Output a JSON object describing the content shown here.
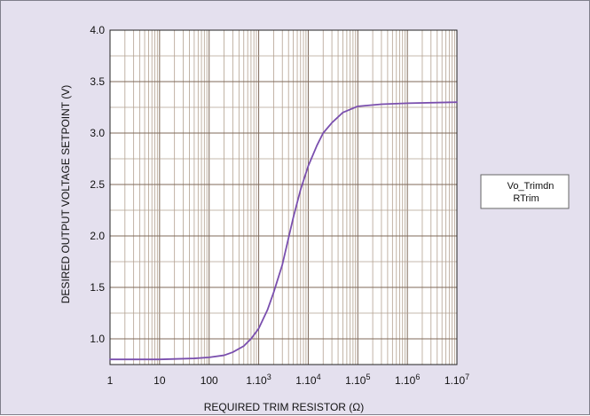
{
  "chart_data": {
    "type": "line",
    "title": "",
    "xlabel": "REQUIRED TRIM RESISTOR (Ω)",
    "ylabel": "DESIRED OUTPUT VOLTAGE SETPOINT (V)",
    "x_scale": "log",
    "xlim": [
      1,
      10000000
    ],
    "ylim": [
      0.75,
      4.0
    ],
    "grid": true,
    "x_ticks": [
      {
        "value": 1,
        "base": "1",
        "exp": ""
      },
      {
        "value": 10,
        "base": "10",
        "exp": ""
      },
      {
        "value": 100,
        "base": "100",
        "exp": ""
      },
      {
        "value": 1000,
        "base": "1.10",
        "exp": "3"
      },
      {
        "value": 10000,
        "base": "1.10",
        "exp": "4"
      },
      {
        "value": 100000,
        "base": "1.10",
        "exp": "5"
      },
      {
        "value": 1000000,
        "base": "1.10",
        "exp": "6"
      },
      {
        "value": 10000000,
        "base": "1.10",
        "exp": "7"
      }
    ],
    "y_ticks": [
      {
        "value": 1.0,
        "label": "1.0"
      },
      {
        "value": 1.5,
        "label": "1.5"
      },
      {
        "value": 2.0,
        "label": "2.0"
      },
      {
        "value": 2.5,
        "label": "2.5"
      },
      {
        "value": 3.0,
        "label": "3.0"
      },
      {
        "value": 3.5,
        "label": "3.5"
      },
      {
        "value": 4.0,
        "label": "4.0"
      }
    ],
    "legend": {
      "placement": "right",
      "lines": [
        "Vo_Trimdn",
        "RTrim"
      ]
    },
    "series": [
      {
        "color": "#7a4fae",
        "points": [
          {
            "x": 1,
            "y": 0.8
          },
          {
            "x": 10,
            "y": 0.8
          },
          {
            "x": 50,
            "y": 0.81
          },
          {
            "x": 100,
            "y": 0.82
          },
          {
            "x": 200,
            "y": 0.84
          },
          {
            "x": 300,
            "y": 0.87
          },
          {
            "x": 500,
            "y": 0.93
          },
          {
            "x": 700,
            "y": 1.0
          },
          {
            "x": 1000,
            "y": 1.1
          },
          {
            "x": 1500,
            "y": 1.28
          },
          {
            "x": 2000,
            "y": 1.45
          },
          {
            "x": 3000,
            "y": 1.72
          },
          {
            "x": 4000,
            "y": 1.98
          },
          {
            "x": 5000,
            "y": 2.18
          },
          {
            "x": 7000,
            "y": 2.45
          },
          {
            "x": 10000,
            "y": 2.68
          },
          {
            "x": 15000,
            "y": 2.88
          },
          {
            "x": 20000,
            "y": 3.0
          },
          {
            "x": 30000,
            "y": 3.1
          },
          {
            "x": 50000,
            "y": 3.2
          },
          {
            "x": 100000,
            "y": 3.26
          },
          {
            "x": 300000,
            "y": 3.28
          },
          {
            "x": 1000000,
            "y": 3.29
          },
          {
            "x": 10000000,
            "y": 3.3
          }
        ]
      }
    ]
  }
}
